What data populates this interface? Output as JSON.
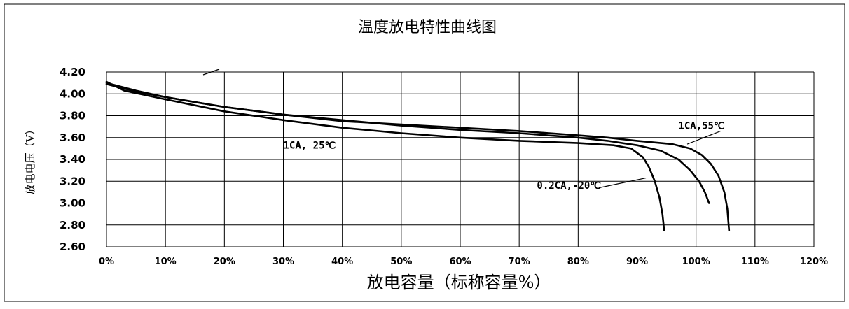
{
  "chart_data": {
    "type": "line",
    "title": "温度放电特性曲线图",
    "xlabel": "放电容量（标称容量%）",
    "ylabel": "放电电压（V）",
    "xlim": [
      0,
      120
    ],
    "ylim": [
      2.6,
      4.2
    ],
    "x_ticks": [
      "0%",
      "10%",
      "20%",
      "30%",
      "40%",
      "50%",
      "60%",
      "70%",
      "80%",
      "90%",
      "100%",
      "110%",
      "120%"
    ],
    "y_ticks": [
      "2.60",
      "2.80",
      "3.00",
      "3.20",
      "3.40",
      "3.60",
      "3.80",
      "4.00",
      "4.20"
    ],
    "grid": true,
    "series": [
      {
        "name": "1CA, 25℃",
        "points": [
          [
            0,
            4.11
          ],
          [
            3,
            4.03
          ],
          [
            10,
            3.95
          ],
          [
            20,
            3.84
          ],
          [
            30,
            3.76
          ],
          [
            40,
            3.69
          ],
          [
            50,
            3.64
          ],
          [
            60,
            3.6
          ],
          [
            70,
            3.57
          ],
          [
            80,
            3.55
          ],
          [
            86,
            3.53
          ],
          [
            89,
            3.5
          ],
          [
            91,
            3.42
          ],
          [
            92,
            3.33
          ],
          [
            93,
            3.2
          ],
          [
            93.8,
            3.05
          ],
          [
            94.3,
            2.9
          ],
          [
            94.6,
            2.75
          ]
        ]
      },
      {
        "name": "0.2CA, -20℃",
        "points": [
          [
            0,
            4.09
          ],
          [
            5,
            4.02
          ],
          [
            10,
            3.97
          ],
          [
            20,
            3.88
          ],
          [
            30,
            3.81
          ],
          [
            40,
            3.76
          ],
          [
            50,
            3.71
          ],
          [
            60,
            3.67
          ],
          [
            70,
            3.64
          ],
          [
            80,
            3.6
          ],
          [
            85,
            3.57
          ],
          [
            90,
            3.53
          ],
          [
            94,
            3.48
          ],
          [
            97,
            3.4
          ],
          [
            99,
            3.3
          ],
          [
            100.5,
            3.2
          ],
          [
            101.5,
            3.1
          ],
          [
            102.2,
            3.0
          ]
        ]
      },
      {
        "name": "1CA, 55℃",
        "points": [
          [
            0,
            4.1
          ],
          [
            5,
            4.03
          ],
          [
            10,
            3.97
          ],
          [
            20,
            3.88
          ],
          [
            30,
            3.81
          ],
          [
            40,
            3.75
          ],
          [
            50,
            3.72
          ],
          [
            60,
            3.69
          ],
          [
            70,
            3.66
          ],
          [
            80,
            3.62
          ],
          [
            85,
            3.6
          ],
          [
            90,
            3.57
          ],
          [
            96,
            3.54
          ],
          [
            99,
            3.5
          ],
          [
            101,
            3.44
          ],
          [
            102.5,
            3.36
          ],
          [
            103.8,
            3.25
          ],
          [
            104.8,
            3.1
          ],
          [
            105.3,
            2.95
          ],
          [
            105.6,
            2.75
          ]
        ]
      }
    ],
    "annotations": [
      {
        "text": "1CA, 25℃",
        "x": 30,
        "y": 3.5
      },
      {
        "text": "0.2CA,-20℃",
        "x": 73,
        "y": 3.13
      },
      {
        "text": "1CA,55℃",
        "x": 97,
        "y": 3.68
      }
    ]
  }
}
